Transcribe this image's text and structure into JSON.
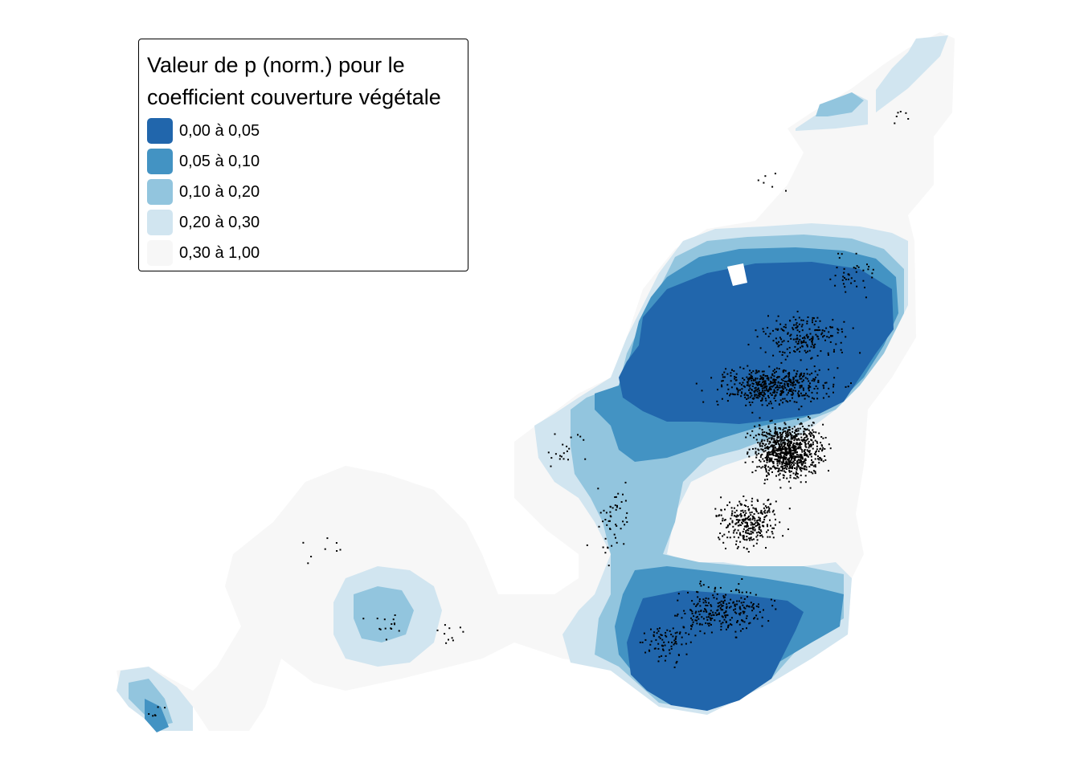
{
  "legend": {
    "title_line1": "Valeur de p (norm.) pour le",
    "title_line2": "coefficient couverture végétale",
    "classes": [
      {
        "label": "0,00 à 0,05",
        "color": "#2166ac"
      },
      {
        "label": "0,05 à 0,10",
        "color": "#4393c3"
      },
      {
        "label": "0,10 à 0,20",
        "color": "#92c5de"
      },
      {
        "label": "0,20 à 0,30",
        "color": "#d1e5f0"
      },
      {
        "label": "0,30 à 1,00",
        "color": "#f7f7f7"
      }
    ]
  },
  "colors": {
    "background": "#ffffff",
    "points": "#000000"
  }
}
